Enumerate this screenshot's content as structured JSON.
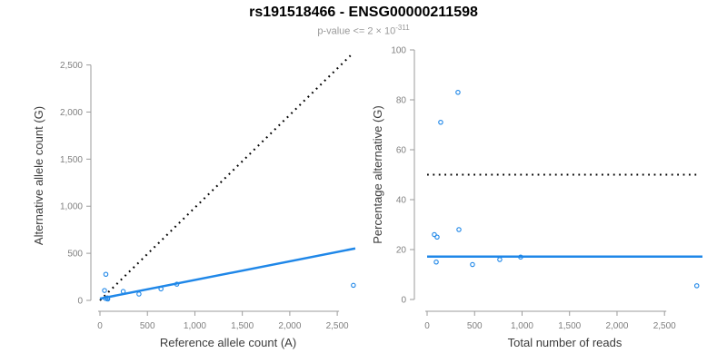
{
  "title": "rs191518466 - ENSG00000211598",
  "subtitle": {
    "text": "p-value <= 2 × 10",
    "exponent": "-311"
  },
  "colors": {
    "accent_blue": "#1f87e8",
    "dotted_line": "#000000",
    "axis_line": "#9b9b9b",
    "tick_label": "#7f7f7f",
    "axis_title": "#3c3c3c",
    "title": "#000000",
    "subtitle": "#9a9a9a",
    "background": "#ffffff"
  },
  "chart_data": [
    {
      "id": "left",
      "type": "scatter",
      "title": "",
      "xlabel": "Reference allele count (A)",
      "ylabel": "Alternative allele count (G)",
      "xlim": [
        0,
        2700
      ],
      "ylim": [
        0,
        2650
      ],
      "grid": false,
      "legend": "none",
      "xticks": [
        0,
        500,
        1000,
        1500,
        2000,
        2500
      ],
      "xtick_labels": [
        "0",
        "500",
        "1,000",
        "1,500",
        "2,000",
        "2,500"
      ],
      "yticks": [
        0,
        500,
        1000,
        1500,
        2000,
        2500
      ],
      "ytick_labels": [
        "0",
        "500",
        "1,000",
        "1,500",
        "2,000",
        "2,500"
      ],
      "points": [
        [
          62,
          277
        ],
        [
          48,
          105
        ],
        [
          245,
          95
        ],
        [
          411,
          67
        ],
        [
          643,
          122
        ],
        [
          810,
          172
        ],
        [
          2670,
          160
        ],
        [
          59,
          21
        ],
        [
          79,
          26
        ],
        [
          82,
          14
        ]
      ],
      "lines": [
        {
          "name": "identity-line",
          "style": "dotted",
          "color": "#000000",
          "x1": 0,
          "y1": 0,
          "x2": 2640,
          "y2": 2600
        },
        {
          "name": "regression-line",
          "style": "solid",
          "color": "#1f87e8",
          "x1": 0,
          "y1": 18,
          "x2": 2690,
          "y2": 552
        }
      ]
    },
    {
      "id": "right",
      "type": "scatter",
      "title": "",
      "xlabel": "Total number of reads",
      "ylabel": "Percentage alternative (G)",
      "xlim": [
        0,
        2900
      ],
      "ylim": [
        0,
        100
      ],
      "grid": false,
      "legend": "none",
      "xticks": [
        0,
        500,
        1000,
        1500,
        2000,
        2500
      ],
      "xtick_labels": [
        "0",
        "500",
        "1,000",
        "1,500",
        "2,000",
        "2,500"
      ],
      "yticks": [
        0,
        20,
        40,
        60,
        80,
        100
      ],
      "ytick_labels": [
        "0",
        "20",
        "40",
        "60",
        "80",
        "100"
      ],
      "points": [
        [
          325,
          83
        ],
        [
          143,
          71
        ],
        [
          335,
          28
        ],
        [
          76,
          26
        ],
        [
          105,
          25
        ],
        [
          96,
          15
        ],
        [
          478,
          14
        ],
        [
          765,
          16
        ],
        [
          985,
          17
        ],
        [
          2840,
          5.5
        ]
      ],
      "lines": [
        {
          "name": "fifty-percent-line",
          "style": "dotted",
          "color": "#000000",
          "x1": 0,
          "y1": 50,
          "x2": 2870,
          "y2": 50
        },
        {
          "name": "mean-percentage-line",
          "style": "solid",
          "color": "#1f87e8",
          "x1": 0,
          "y1": 17.2,
          "x2": 2900,
          "y2": 17.2
        }
      ]
    }
  ]
}
